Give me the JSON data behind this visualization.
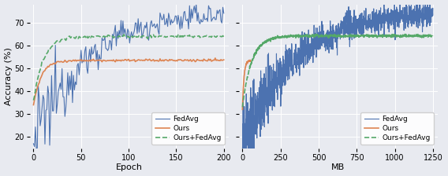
{
  "background_color": "#E8EAF0",
  "ylabel": "Accuracy (%)",
  "xlabel_left": "Epoch",
  "xlabel_right": "MB",
  "ylim": [
    15,
    78
  ],
  "yticks": [
    20,
    30,
    40,
    50,
    60,
    70
  ],
  "xlim_left": [
    -4,
    205
  ],
  "xticks_left": [
    0,
    50,
    100,
    150,
    200
  ],
  "xlim_right": [
    -25,
    1280
  ],
  "xticks_right": [
    0,
    250,
    500,
    750,
    1000,
    1250
  ],
  "colors": {
    "fedavg": "#4C72B0",
    "ours": "#DD8452",
    "ours_fedavg": "#55A868"
  },
  "legend_labels": [
    "FedAvg",
    "Ours",
    "Ours+FedAvg"
  ],
  "fedavg_lw": 0.8,
  "ours_lw": 1.2,
  "ours_fedavg_lw": 1.2,
  "ours_fedavg_ls": "--",
  "tick_fontsize": 7,
  "label_fontsize": 8,
  "legend_fontsize": 6.5
}
